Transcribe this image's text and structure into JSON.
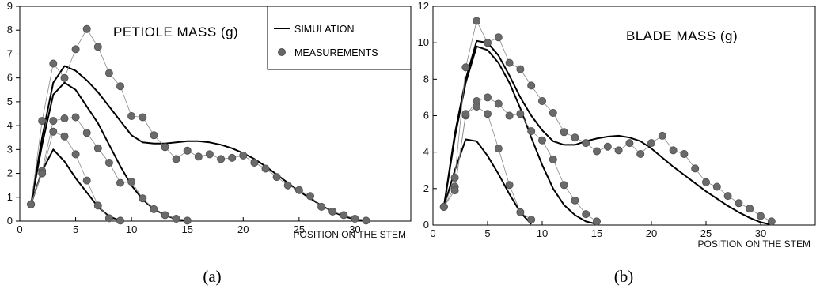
{
  "chart_data": [
    {
      "type": "line",
      "title": "PETIOLE MASS (g)",
      "xlabel": "POSITION ON THE STEM",
      "ylabel": "",
      "xlim": [
        0,
        35
      ],
      "ylim": [
        0,
        9
      ],
      "xticks": [
        0,
        5,
        10,
        15,
        20,
        25,
        30
      ],
      "yticks": [
        0,
        1,
        2,
        3,
        4,
        5,
        6,
        7,
        8,
        9
      ],
      "caption": "(a)",
      "legend": {
        "position": "top-right",
        "entries": [
          {
            "label": "SIMULATION",
            "marker": "line"
          },
          {
            "label": "MEASUREMENTS",
            "marker": "dot"
          }
        ]
      },
      "series": [
        {
          "kind": "simulation",
          "x": [
            1,
            2,
            3,
            4,
            5,
            6,
            7,
            8,
            9,
            10,
            11,
            12,
            13,
            14,
            15,
            16,
            17,
            18,
            19,
            20,
            21,
            22,
            23,
            24,
            25,
            26,
            27,
            28,
            29,
            30,
            31
          ],
          "y": [
            0.7,
            3.5,
            5.8,
            6.5,
            6.3,
            5.9,
            5.4,
            4.8,
            4.2,
            3.6,
            3.3,
            3.25,
            3.25,
            3.3,
            3.35,
            3.35,
            3.3,
            3.2,
            3.05,
            2.85,
            2.6,
            2.3,
            1.95,
            1.6,
            1.25,
            0.95,
            0.65,
            0.4,
            0.2,
            0.08,
            0.02
          ]
        },
        {
          "kind": "simulation",
          "x": [
            1,
            2,
            3,
            4,
            5,
            6,
            7,
            8,
            9,
            10,
            11,
            12,
            13,
            14,
            15
          ],
          "y": [
            0.7,
            3.2,
            5.3,
            5.8,
            5.5,
            4.8,
            4.1,
            3.2,
            2.3,
            1.5,
            0.9,
            0.5,
            0.25,
            0.08,
            0.02
          ]
        },
        {
          "kind": "simulation",
          "x": [
            1,
            2,
            3,
            4,
            5,
            6,
            7,
            8,
            9
          ],
          "y": [
            0.7,
            2.1,
            3.0,
            2.5,
            1.8,
            1.2,
            0.6,
            0.2,
            0.02
          ]
        },
        {
          "kind": "measurements",
          "x": [
            1,
            2,
            3,
            4,
            5,
            6,
            7,
            8,
            9,
            10,
            11,
            12,
            13,
            14,
            15,
            16,
            17,
            18,
            19,
            20,
            21,
            22,
            23,
            24,
            25,
            26,
            27,
            28,
            29,
            30,
            31
          ],
          "y": [
            0.7,
            4.2,
            6.6,
            6.0,
            7.2,
            8.05,
            7.3,
            6.2,
            5.65,
            4.4,
            4.35,
            3.6,
            3.1,
            2.6,
            2.95,
            2.7,
            2.8,
            2.6,
            2.65,
            2.75,
            2.45,
            2.2,
            1.85,
            1.5,
            1.3,
            1.05,
            0.6,
            0.4,
            0.25,
            0.1,
            0.02
          ]
        },
        {
          "kind": "measurements",
          "x": [
            1,
            2,
            3,
            4,
            5,
            6,
            7,
            8,
            9,
            10,
            11,
            12,
            13,
            14,
            15
          ],
          "y": [
            0.7,
            2.1,
            4.2,
            4.3,
            4.35,
            3.7,
            3.05,
            2.45,
            1.6,
            1.65,
            0.95,
            0.5,
            0.25,
            0.1,
            0.02
          ]
        },
        {
          "kind": "measurements",
          "x": [
            1,
            2,
            3,
            4,
            5,
            6,
            7,
            8,
            9
          ],
          "y": [
            0.7,
            2.0,
            3.75,
            3.55,
            2.8,
            1.7,
            0.65,
            0.12,
            0.02
          ]
        }
      ]
    },
    {
      "type": "line",
      "title": "BLADE MASS (g)",
      "xlabel": "POSITION ON THE STEM",
      "ylabel": "",
      "xlim": [
        0,
        35
      ],
      "ylim": [
        0,
        12
      ],
      "xticks": [
        0,
        5,
        10,
        15,
        20,
        25,
        30
      ],
      "yticks": [
        0,
        2,
        4,
        6,
        8,
        10,
        12
      ],
      "caption": "(b)",
      "series": [
        {
          "kind": "simulation",
          "x": [
            1,
            2,
            3,
            4,
            5,
            6,
            7,
            8,
            9,
            10,
            11,
            12,
            13,
            14,
            15,
            16,
            17,
            18,
            19,
            20,
            21,
            22,
            23,
            24,
            25,
            26,
            27,
            28,
            29,
            30,
            31
          ],
          "y": [
            1.0,
            5.0,
            8.0,
            10.1,
            10.0,
            9.3,
            8.2,
            7.0,
            6.0,
            5.2,
            4.6,
            4.4,
            4.4,
            4.6,
            4.75,
            4.85,
            4.9,
            4.8,
            4.6,
            4.2,
            3.7,
            3.2,
            2.75,
            2.3,
            1.85,
            1.45,
            1.05,
            0.7,
            0.4,
            0.15,
            0.02
          ]
        },
        {
          "kind": "simulation",
          "x": [
            1,
            2,
            3,
            4,
            5,
            6,
            7,
            8,
            9,
            10,
            11,
            12,
            13,
            14,
            15
          ],
          "y": [
            1.0,
            4.8,
            7.8,
            9.8,
            9.6,
            8.9,
            7.8,
            6.4,
            4.8,
            3.3,
            2.0,
            1.1,
            0.55,
            0.2,
            0.05
          ]
        },
        {
          "kind": "simulation",
          "x": [
            1,
            2,
            3,
            4,
            5,
            6,
            7,
            8,
            9
          ],
          "y": [
            1.0,
            3.0,
            4.7,
            4.6,
            3.8,
            2.8,
            1.7,
            0.7,
            0.05
          ]
        },
        {
          "kind": "measurements",
          "x": [
            1,
            2,
            3,
            4,
            5,
            6,
            7,
            8,
            9,
            10,
            11,
            12,
            13,
            14,
            15,
            16,
            17,
            18,
            19,
            20,
            21,
            22,
            23,
            24,
            25,
            26,
            27,
            28,
            29,
            30,
            31
          ],
          "y": [
            1.0,
            2.6,
            8.65,
            11.2,
            10.0,
            10.3,
            8.9,
            8.55,
            7.65,
            6.8,
            6.15,
            5.1,
            4.8,
            4.5,
            4.05,
            4.3,
            4.1,
            4.5,
            3.9,
            4.5,
            4.9,
            4.1,
            3.9,
            3.1,
            2.35,
            2.1,
            1.6,
            1.2,
            0.9,
            0.5,
            0.2
          ]
        },
        {
          "kind": "measurements",
          "x": [
            1,
            2,
            3,
            4,
            5,
            6,
            7,
            8,
            9,
            10,
            11,
            12,
            13,
            14,
            15
          ],
          "y": [
            1.0,
            2.1,
            6.0,
            6.8,
            7.0,
            6.65,
            6.0,
            6.1,
            5.15,
            4.65,
            3.6,
            2.2,
            1.35,
            0.6,
            0.2
          ]
        },
        {
          "kind": "measurements",
          "x": [
            1,
            2,
            3,
            4,
            5,
            6,
            7,
            8,
            9
          ],
          "y": [
            1.0,
            1.9,
            6.1,
            6.5,
            6.1,
            4.2,
            2.2,
            0.7,
            0.3
          ]
        }
      ]
    }
  ]
}
